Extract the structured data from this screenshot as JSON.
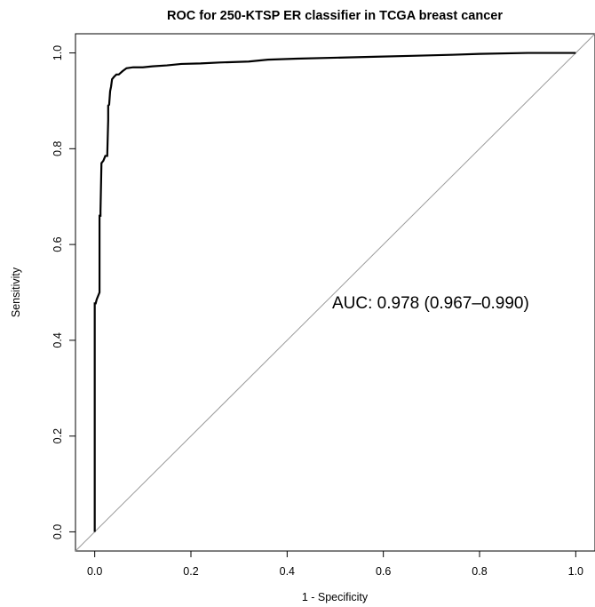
{
  "chart_data": {
    "type": "line",
    "title": "ROC for 250-KTSP ER classifier in TCGA breast cancer",
    "xlabel": "1 - Specificity",
    "ylabel": "Sensitivity",
    "xlim": [
      -0.04,
      1.04
    ],
    "ylim": [
      -0.04,
      1.04
    ],
    "x_ticks": [
      0.0,
      0.2,
      0.4,
      0.6,
      0.8,
      1.0
    ],
    "x_tick_labels": [
      "0.0",
      "0.2",
      "0.4",
      "0.6",
      "0.8",
      "1.0"
    ],
    "y_ticks": [
      0.0,
      0.2,
      0.4,
      0.6,
      0.8,
      1.0
    ],
    "y_tick_labels": [
      "0.0",
      "0.2",
      "0.4",
      "0.6",
      "0.8",
      "1.0"
    ],
    "grid": false,
    "annotation": "AUC: 0.978 (0.967–0.990)",
    "reference_line": {
      "x": [
        -0.04,
        1.04
      ],
      "y": [
        -0.04,
        1.04
      ],
      "color": "#9a9a9a"
    },
    "series": [
      {
        "color": "#000000",
        "x": [
          0.0,
          0.0,
          0.002,
          0.004,
          0.01,
          0.01,
          0.012,
          0.012,
          0.014,
          0.018,
          0.022,
          0.026,
          0.028,
          0.028,
          0.03,
          0.032,
          0.034,
          0.036,
          0.04,
          0.045,
          0.05,
          0.058,
          0.066,
          0.08,
          0.1,
          0.12,
          0.15,
          0.18,
          0.22,
          0.26,
          0.32,
          0.36,
          0.42,
          0.5,
          0.58,
          0.66,
          0.74,
          0.8,
          0.9,
          1.0
        ],
        "y": [
          0.0,
          0.477,
          0.477,
          0.485,
          0.5,
          0.66,
          0.66,
          0.67,
          0.77,
          0.775,
          0.785,
          0.785,
          0.86,
          0.89,
          0.892,
          0.92,
          0.93,
          0.945,
          0.95,
          0.955,
          0.955,
          0.962,
          0.968,
          0.97,
          0.97,
          0.972,
          0.974,
          0.977,
          0.978,
          0.98,
          0.982,
          0.986,
          0.988,
          0.99,
          0.992,
          0.994,
          0.996,
          0.998,
          1.0,
          1.0
        ]
      }
    ]
  }
}
